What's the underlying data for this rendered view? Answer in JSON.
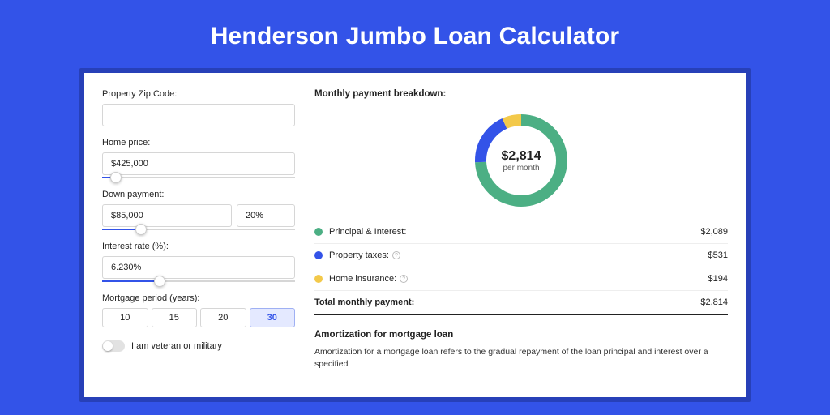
{
  "page": {
    "title": "Henderson Jumbo Loan Calculator",
    "background_color": "#3353e8",
    "shadow_color": "#2740b8",
    "panel_color": "#ffffff",
    "accent_color": "#3353e8"
  },
  "form": {
    "zip": {
      "label": "Property Zip Code:",
      "value": ""
    },
    "home_price": {
      "label": "Home price:",
      "value": "$425,000",
      "slider_percent": 7
    },
    "down_payment": {
      "label": "Down payment:",
      "amount": "$85,000",
      "percent": "20%",
      "slider_percent": 20
    },
    "interest_rate": {
      "label": "Interest rate (%):",
      "value": "6.230%",
      "slider_percent": 30
    },
    "mortgage_period": {
      "label": "Mortgage period (years):",
      "options": [
        "10",
        "15",
        "20",
        "30"
      ],
      "selected_index": 3
    },
    "veteran": {
      "label": "I am veteran or military",
      "value": false
    }
  },
  "breakdown": {
    "title": "Monthly payment breakdown:",
    "center_amount": "$2,814",
    "center_sub": "per month",
    "chart": {
      "type": "donut",
      "values": [
        2089,
        531,
        194
      ],
      "colors": [
        "#4caf84",
        "#3353e8",
        "#f3c94a"
      ],
      "background_color": "#ffffff",
      "stroke_width": 14,
      "radius": 50
    },
    "items": [
      {
        "label": "Principal & Interest:",
        "value": "$2,089",
        "color": "#4caf84",
        "has_info": false
      },
      {
        "label": "Property taxes:",
        "value": "$531",
        "color": "#3353e8",
        "has_info": true
      },
      {
        "label": "Home insurance:",
        "value": "$194",
        "color": "#f3c94a",
        "has_info": true
      }
    ],
    "total": {
      "label": "Total monthly payment:",
      "value": "$2,814"
    }
  },
  "amortization": {
    "title": "Amortization for mortgage loan",
    "text": "Amortization for a mortgage loan refers to the gradual repayment of the loan principal and interest over a specified"
  }
}
